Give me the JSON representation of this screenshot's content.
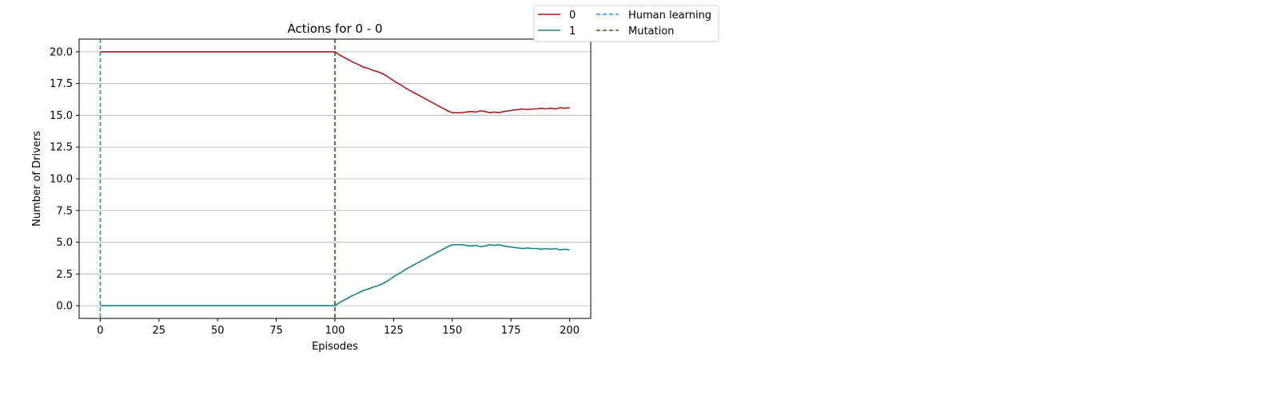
{
  "chart_data": {
    "type": "line",
    "title": "Actions for 0 - 0",
    "xlabel": "Episodes",
    "ylabel": "Number of Drivers",
    "xlim": [
      -9,
      209
    ],
    "ylim": [
      -1,
      21
    ],
    "x_ticks": [
      0,
      25,
      50,
      75,
      100,
      125,
      150,
      175,
      200
    ],
    "y_ticks": [
      0.0,
      2.5,
      5.0,
      7.5,
      10.0,
      12.5,
      15.0,
      17.5,
      20.0
    ],
    "x_tick_labels": [
      "0",
      "25",
      "50",
      "75",
      "100",
      "125",
      "150",
      "175",
      "200"
    ],
    "y_tick_labels": [
      "0.0",
      "2.5",
      "5.0",
      "7.5",
      "10.0",
      "12.5",
      "15.0",
      "17.5",
      "20.0"
    ],
    "grid": "horizontal",
    "legend_placement": "upper-right outside plot",
    "series": [
      {
        "name": "0",
        "color": "#a31c1c",
        "x": [
          0,
          100,
          102,
          104,
          106,
          108,
          110,
          112,
          114,
          116,
          118,
          120,
          122,
          124,
          126,
          128,
          130,
          132,
          134,
          136,
          138,
          140,
          142,
          144,
          146,
          148,
          150,
          152,
          154,
          156,
          158,
          160,
          162,
          164,
          166,
          168,
          170,
          172,
          174,
          176,
          178,
          180,
          182,
          184,
          186,
          188,
          190,
          192,
          194,
          196,
          198,
          200
        ],
        "y": [
          20,
          20,
          19.75,
          19.55,
          19.35,
          19.15,
          19.0,
          18.8,
          18.7,
          18.55,
          18.45,
          18.3,
          18.1,
          17.85,
          17.6,
          17.4,
          17.15,
          16.95,
          16.75,
          16.55,
          16.35,
          16.15,
          15.95,
          15.75,
          15.55,
          15.35,
          15.2,
          15.2,
          15.2,
          15.25,
          15.3,
          15.25,
          15.35,
          15.3,
          15.2,
          15.25,
          15.2,
          15.3,
          15.35,
          15.4,
          15.45,
          15.5,
          15.45,
          15.5,
          15.5,
          15.55,
          15.5,
          15.55,
          15.5,
          15.6,
          15.55,
          15.6
        ]
      },
      {
        "name": "1",
        "color": "#1b8282",
        "x": [
          0,
          100,
          102,
          104,
          106,
          108,
          110,
          112,
          114,
          116,
          118,
          120,
          122,
          124,
          126,
          128,
          130,
          132,
          134,
          136,
          138,
          140,
          142,
          144,
          146,
          148,
          150,
          152,
          154,
          156,
          158,
          160,
          162,
          164,
          166,
          168,
          170,
          172,
          174,
          176,
          178,
          180,
          182,
          184,
          186,
          188,
          190,
          192,
          194,
          196,
          198,
          200
        ],
        "y": [
          0,
          0,
          0.25,
          0.45,
          0.65,
          0.85,
          1.0,
          1.2,
          1.3,
          1.45,
          1.55,
          1.7,
          1.9,
          2.15,
          2.4,
          2.6,
          2.85,
          3.05,
          3.25,
          3.45,
          3.65,
          3.85,
          4.05,
          4.25,
          4.45,
          4.65,
          4.8,
          4.8,
          4.8,
          4.75,
          4.7,
          4.75,
          4.65,
          4.7,
          4.8,
          4.75,
          4.8,
          4.7,
          4.65,
          4.6,
          4.55,
          4.5,
          4.55,
          4.5,
          4.5,
          4.45,
          4.5,
          4.45,
          4.5,
          4.4,
          4.45,
          4.4
        ]
      }
    ],
    "vlines": [
      {
        "name": "Human learning",
        "x": 0,
        "color": "#1f8fff",
        "style": "dashed"
      },
      {
        "name": "Mutation",
        "x": 100,
        "color": "#3a5a1f",
        "style": "dashed"
      }
    ]
  }
}
